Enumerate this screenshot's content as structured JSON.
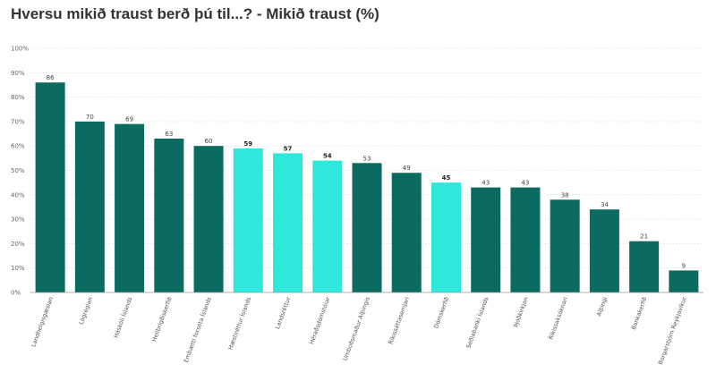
{
  "title": "Hversu mikið traust berð þú til...? - Mikið traust (%)",
  "colors": {
    "dark": "#0b6b60",
    "light": "#2ee8dc",
    "grid": "#d6d6d6",
    "axis": "#999999"
  },
  "chart_data": {
    "type": "bar",
    "title": "Hversu mikið traust berð þú til...? - Mikið traust (%)",
    "categories": [
      "Landhelgisgæslan",
      "Lögreglan",
      "Háskóli Íslands",
      "Heilbrigðiskerfið",
      "Embætti forseta Íslands",
      "Hæstiréttur Íslands",
      "Landsréttur",
      "Héraðsdómstólar",
      "Umboðsmaður Alþingis",
      "Ríkissáttasemjari",
      "Dómskerfið",
      "Seðlabanki Íslands",
      "Þjóðkirkjan",
      "Ríkissaksóknari",
      "Alþingi",
      "Bankakerfið",
      "Borgarstjórn Reykjavíkur"
    ],
    "values": [
      86,
      70,
      69,
      63,
      60,
      59,
      57,
      54,
      53,
      49,
      45,
      43,
      43,
      38,
      34,
      21,
      9
    ],
    "highlight": [
      false,
      false,
      false,
      false,
      false,
      true,
      true,
      true,
      false,
      false,
      true,
      false,
      false,
      false,
      false,
      false,
      false
    ],
    "bold_labels": [
      false,
      false,
      false,
      false,
      false,
      true,
      true,
      true,
      false,
      false,
      true,
      false,
      false,
      false,
      false,
      false,
      false
    ],
    "ylim": [
      0,
      100
    ],
    "yticks": [
      "0%",
      "10%",
      "20%",
      "30%",
      "40%",
      "50%",
      "60%",
      "70%",
      "80%",
      "90%",
      "100%"
    ],
    "grid": true,
    "xlabel": "",
    "ylabel": ""
  }
}
